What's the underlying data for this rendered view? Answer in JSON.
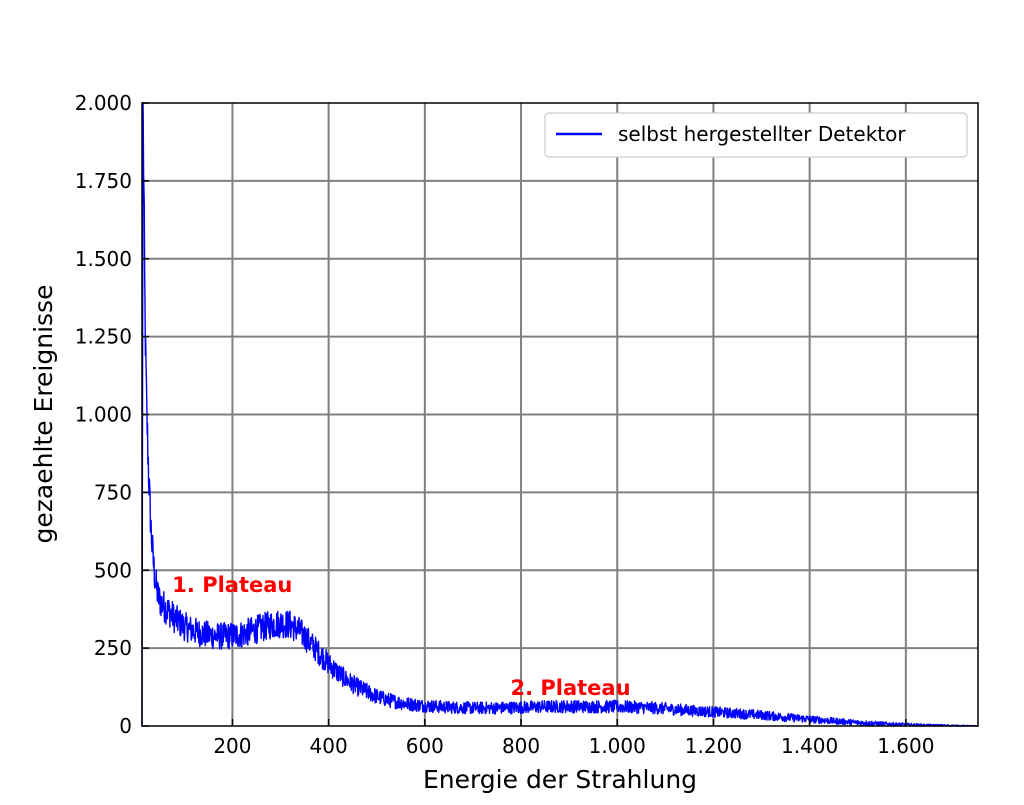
{
  "chart_data": {
    "type": "line",
    "title": "",
    "xlabel": "Energie der Strahlung",
    "ylabel": "gezaehlte Ereignisse",
    "xlim": [
      12,
      1750
    ],
    "ylim": [
      0,
      2000
    ],
    "grid": true,
    "legend_position": "top-right",
    "x_ticks": [
      {
        "value": 200,
        "label": "200"
      },
      {
        "value": 400,
        "label": "400"
      },
      {
        "value": 600,
        "label": "600"
      },
      {
        "value": 800,
        "label": "800"
      },
      {
        "value": 1000,
        "label": "1.000"
      },
      {
        "value": 1200,
        "label": "1.200"
      },
      {
        "value": 1400,
        "label": "1.400"
      },
      {
        "value": 1600,
        "label": "1.600"
      }
    ],
    "y_ticks": [
      {
        "value": 0,
        "label": "0"
      },
      {
        "value": 250,
        "label": "250"
      },
      {
        "value": 500,
        "label": "500"
      },
      {
        "value": 750,
        "label": "750"
      },
      {
        "value": 1000,
        "label": "1.000"
      },
      {
        "value": 1250,
        "label": "1.250"
      },
      {
        "value": 1500,
        "label": "1.500"
      },
      {
        "value": 1750,
        "label": "1.750"
      },
      {
        "value": 2000,
        "label": "2.000"
      }
    ],
    "series": [
      {
        "name": "selbst hergestellter Detektor",
        "color": "#0000ff",
        "x": [
          12,
          14,
          16,
          18,
          20,
          22,
          25,
          28,
          32,
          36,
          40,
          45,
          50,
          60,
          70,
          80,
          100,
          120,
          140,
          160,
          180,
          200,
          220,
          240,
          260,
          280,
          300,
          320,
          340,
          360,
          380,
          400,
          420,
          440,
          460,
          480,
          500,
          520,
          540,
          560,
          580,
          600,
          650,
          700,
          750,
          800,
          850,
          900,
          950,
          1000,
          1050,
          1100,
          1150,
          1200,
          1250,
          1300,
          1350,
          1400,
          1450,
          1500,
          1550,
          1600,
          1650,
          1700,
          1750
        ],
        "y": [
          0,
          2000,
          1700,
          1350,
          1150,
          1000,
          850,
          720,
          600,
          520,
          460,
          420,
          400,
          380,
          365,
          345,
          320,
          305,
          295,
          290,
          288,
          290,
          295,
          305,
          315,
          325,
          330,
          325,
          305,
          270,
          235,
          200,
          170,
          145,
          125,
          110,
          95,
          85,
          78,
          72,
          68,
          65,
          60,
          58,
          58,
          60,
          62,
          63,
          62,
          62,
          60,
          56,
          50,
          45,
          40,
          35,
          28,
          22,
          16,
          11,
          7,
          4,
          2,
          1,
          0
        ]
      }
    ],
    "annotations": [
      {
        "text": "1. Plateau",
        "x": 75,
        "y": 430,
        "color": "#ff0000"
      },
      {
        "text": "2. Plateau",
        "x": 778,
        "y": 100,
        "color": "#ff0000"
      }
    ]
  }
}
